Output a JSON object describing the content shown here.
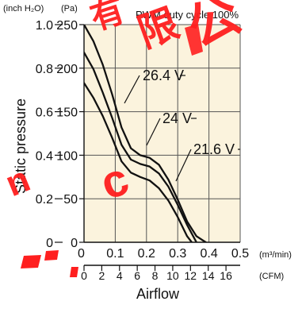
{
  "chart_data": {
    "type": "line",
    "title": "PWM duty cycle 100%",
    "xlabel": "Airflow",
    "ylabel": "Static pressure",
    "left_unit_label": "(inch H₂O)",
    "right_unit_label": "(Pa)",
    "x_primary_unit": "(m³/min)",
    "x_secondary_unit": "(CFM)",
    "x_primary_ticks": [
      "0",
      "0.1",
      "0.2",
      "0.3",
      "0.4",
      "0.5"
    ],
    "x_secondary_ticks": [
      "0",
      "2",
      "4",
      "6",
      "8",
      "10",
      "12",
      "14",
      "16"
    ],
    "y_inch_ticks": [
      "0",
      "0.2",
      "0.4",
      "0.6",
      "0.8",
      "1.0"
    ],
    "y_pa_ticks": [
      "0",
      "50",
      "100",
      "150",
      "200",
      "250"
    ],
    "xlim": [
      0,
      0.5
    ],
    "ylim": [
      0,
      250
    ],
    "grid": true,
    "series": [
      {
        "name": "26.4 V",
        "points": [
          [
            0.0,
            250
          ],
          [
            0.03,
            231
          ],
          [
            0.06,
            204
          ],
          [
            0.09,
            170
          ],
          [
            0.12,
            132
          ],
          [
            0.15,
            108
          ],
          [
            0.18,
            100
          ],
          [
            0.21,
            97
          ],
          [
            0.24,
            89
          ],
          [
            0.27,
            72
          ],
          [
            0.3,
            49
          ],
          [
            0.33,
            24
          ],
          [
            0.36,
            7
          ],
          [
            0.39,
            0
          ]
        ]
      },
      {
        "name": "24 V",
        "points": [
          [
            0.0,
            218
          ],
          [
            0.03,
            199
          ],
          [
            0.06,
            172
          ],
          [
            0.09,
            143
          ],
          [
            0.12,
            112
          ],
          [
            0.15,
            95
          ],
          [
            0.18,
            90
          ],
          [
            0.21,
            87
          ],
          [
            0.24,
            79
          ],
          [
            0.27,
            64
          ],
          [
            0.3,
            43
          ],
          [
            0.33,
            20
          ],
          [
            0.36,
            0
          ]
        ]
      },
      {
        "name": "21.6 V",
        "points": [
          [
            0.0,
            183
          ],
          [
            0.03,
            166
          ],
          [
            0.06,
            145
          ],
          [
            0.09,
            120
          ],
          [
            0.12,
            93
          ],
          [
            0.15,
            80
          ],
          [
            0.18,
            75
          ],
          [
            0.21,
            71
          ],
          [
            0.24,
            62
          ],
          [
            0.27,
            48
          ],
          [
            0.3,
            29
          ],
          [
            0.33,
            7
          ],
          [
            0.345,
            0
          ]
        ]
      }
    ],
    "colors": {
      "plot_bg": "#fbf3dd",
      "grid": "#555555",
      "curve": "#111111",
      "watermark": "#ff1f1f"
    }
  },
  "watermark": {
    "chars": [
      "有",
      "限",
      "公",
      "n",
      "c"
    ]
  }
}
